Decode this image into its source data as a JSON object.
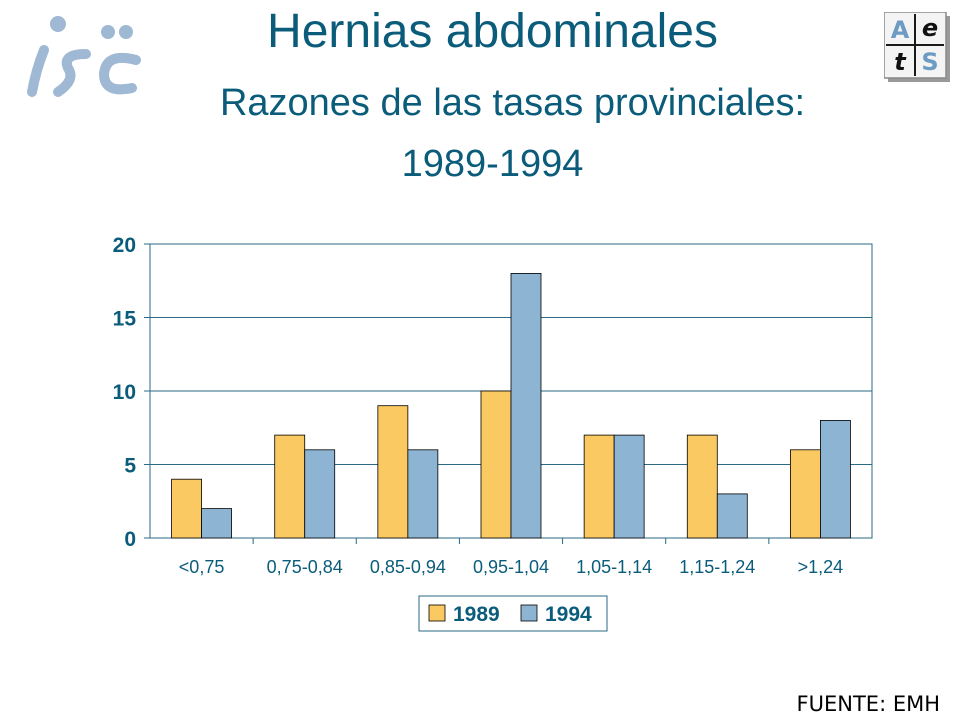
{
  "header": {
    "title": "Hernias abdominales",
    "subtitle_line1": "Razones de las tasas provinciales:",
    "subtitle_line2": "1989-1994",
    "logo_left_text": "isc",
    "logo_right_letters": [
      "A",
      "e",
      "t",
      "S"
    ]
  },
  "footer": {
    "source": "FUENTE: EMH"
  },
  "colors": {
    "title": "#0a5c7a",
    "series_1989": "#fbc961",
    "series_1994": "#8db4d2",
    "axis_text": "#0a5c7a"
  },
  "chart_data": {
    "type": "bar",
    "categories": [
      "<0,75",
      "0,75-0,84",
      "0,85-0,94",
      "0,95-1,04",
      "1,05-1,14",
      "1,15-1,24",
      ">1,24"
    ],
    "series": [
      {
        "name": "1989",
        "values": [
          4,
          7,
          9,
          10,
          7,
          7,
          6
        ]
      },
      {
        "name": "1994",
        "values": [
          2,
          6,
          6,
          18,
          7,
          3,
          8
        ]
      }
    ],
    "yticks": [
      0,
      5,
      10,
      15,
      20
    ],
    "ylim": [
      0,
      20
    ],
    "grid": true,
    "legend": "bottom",
    "xlabel": "",
    "ylabel": ""
  }
}
